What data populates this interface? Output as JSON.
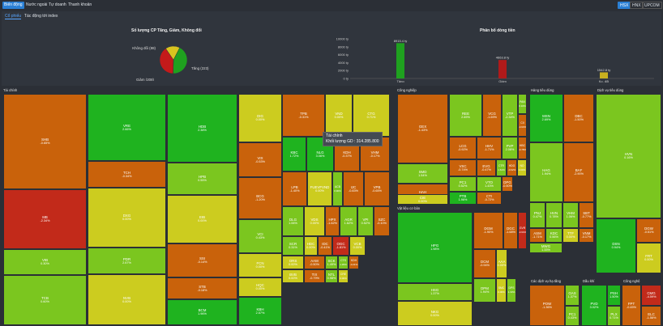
{
  "top_tabs": [
    {
      "label": "Biến động",
      "active": true
    },
    {
      "label": "Nước ngoài",
      "active": false
    },
    {
      "label": "Tự doanh",
      "active": false
    },
    {
      "label": "Thanh khoản",
      "active": false
    }
  ],
  "exchanges": [
    {
      "label": "HSX",
      "active": true
    },
    {
      "label": "HNX",
      "active": false
    },
    {
      "label": "UPCOM",
      "active": false
    }
  ],
  "sub_tabs": [
    {
      "label": "Cổ phiếu",
      "active": true
    },
    {
      "label": "Tác động tới index",
      "active": false
    }
  ],
  "colors": {
    "up": "#7bc61f",
    "strong_up": "#1fb31f",
    "flat": "#cccc1f",
    "down": "#c9620b",
    "strong_down": "#c22a1a"
  },
  "chart_data": [
    {
      "type": "pie",
      "title": "Số lượng CP Tăng, Giảm, Không đổi",
      "categories": [
        "Tăng",
        "Giảm",
        "Không đổi"
      ],
      "values": [
        223,
        208,
        88
      ],
      "labels": [
        "Tăng (223)",
        "Giảm (208)",
        "Không đổi (88)"
      ],
      "colors": [
        "#1fa11f",
        "#c41a1a",
        "#d9c41f"
      ]
    },
    {
      "type": "bar",
      "title": "Phân bổ dòng tiền",
      "categories": [
        "Tăng",
        "Giảm",
        "Ko. đổi"
      ],
      "values": [
        8915.4,
        4663.8,
        1542.8
      ],
      "value_labels": [
        "8915.4 tỷ",
        "4663.8 tỷ",
        "1542.8 tỷ"
      ],
      "yticks": [
        "10000 tỷ",
        "8000 tỷ",
        "6000 tỷ",
        "4000 tỷ",
        "2000 tỷ",
        "0 tỷ"
      ],
      "ylim": [
        0,
        10000
      ],
      "colors": [
        "#1fa11f",
        "#b01a1a",
        "#c8b01f"
      ]
    }
  ],
  "tooltip": {
    "line1": "Tài chính",
    "line2": "Khối lượng GD : 314.285.800"
  },
  "treemap": [
    {
      "name": "Tài chính",
      "tiles": [
        {
          "s": "SHB",
          "p": "-0.65%",
          "c": "down"
        },
        {
          "s": "MB",
          "p": "-2.34%",
          "c": "strong_down"
        },
        {
          "s": "VIB",
          "p": "0.30%",
          "c": "up"
        },
        {
          "s": "TCB",
          "p": "0.60%",
          "c": "up"
        },
        {
          "s": "VRE",
          "p": "2.66%",
          "c": "strong_up"
        },
        {
          "s": "TCH",
          "p": "-0.34%",
          "c": "down"
        },
        {
          "s": "DXG",
          "p": "0.00%",
          "c": "flat"
        },
        {
          "s": "PDR",
          "p": "2.67%",
          "c": "up"
        },
        {
          "s": "NVB",
          "p": "0.00%",
          "c": "flat"
        },
        {
          "s": "HDB",
          "p": "2.38%",
          "c": "strong_up"
        },
        {
          "s": "HPB",
          "p": "0.55%",
          "c": "up"
        },
        {
          "s": "EIB",
          "p": "0.00%",
          "c": "flat"
        },
        {
          "s": "SSI",
          "p": "-0.14%",
          "c": "down"
        },
        {
          "s": "STB",
          "p": "-0.18%",
          "c": "down"
        },
        {
          "s": "BCM",
          "p": "1.96%",
          "c": "strong_up"
        },
        {
          "s": "DIG",
          "p": "0.00%",
          "c": "flat"
        },
        {
          "s": "TPB",
          "p": "-0.31%",
          "c": "down"
        },
        {
          "s": "VND",
          "p": "0.00%",
          "c": "flat"
        },
        {
          "s": "CTG",
          "p": "0.71%",
          "c": "flat"
        },
        {
          "s": "VIX",
          "p": "-0.53%",
          "c": "down"
        },
        {
          "s": "KBC",
          "p": "1.72%",
          "c": "strong_up"
        },
        {
          "s": "NLG",
          "p": "3.06%",
          "c": "strong_up"
        },
        {
          "s": "KDH",
          "p": "-0.37%",
          "c": "down"
        },
        {
          "s": "VHM",
          "p": "-0.17%",
          "c": "down"
        },
        {
          "s": "BCG",
          "p": "-1.20%",
          "c": "down"
        },
        {
          "s": "LPB",
          "p": "-1.40%",
          "c": "down"
        },
        {
          "s": "FUEVFVND",
          "p": "0.00%",
          "c": "flat"
        },
        {
          "s": "ACB",
          "p": "0.90%",
          "c": "up"
        },
        {
          "s": "IJC",
          "p": "-0.83%",
          "c": "down"
        },
        {
          "s": "VPB",
          "p": "-0.65%",
          "c": "down"
        },
        {
          "s": "VCI",
          "p": "0.43%",
          "c": "up"
        },
        {
          "s": "DLG",
          "p": "1.06%",
          "c": "up"
        },
        {
          "s": "VDS",
          "p": "0.00%",
          "c": "flat"
        },
        {
          "s": "HPX",
          "p": "-1.62%",
          "c": "down"
        },
        {
          "s": "AGR",
          "p": "1.62%",
          "c": "up"
        },
        {
          "s": "VPI",
          "p": "0.52%",
          "c": "up"
        },
        {
          "s": "SZC",
          "p": "-0.10%",
          "c": "down"
        },
        {
          "s": "FCN",
          "p": "0.00%",
          "c": "flat"
        },
        {
          "s": "SCR",
          "p": "0.31%",
          "c": "up"
        },
        {
          "s": "HDC",
          "p": "0.00%",
          "c": "flat"
        },
        {
          "s": "IDC",
          "p": "-0.41%",
          "c": "down"
        },
        {
          "s": "OGC",
          "p": "-1.81%",
          "c": "strong_down"
        },
        {
          "s": "VCB",
          "p": "0.00%",
          "c": "flat"
        },
        {
          "s": "HQC",
          "p": "0.00%",
          "c": "flat"
        },
        {
          "s": "ORS",
          "p": "0.00%",
          "c": "flat"
        },
        {
          "s": "AAM",
          "p": "-0.50%",
          "c": "down"
        },
        {
          "s": "SCK",
          "p": "1.49%",
          "c": "up"
        },
        {
          "s": "CTS",
          "p": "1.35%",
          "c": "up"
        },
        {
          "s": "KDH",
          "p": "-0.21%",
          "c": "down"
        },
        {
          "s": "KBH",
          "p": "2.57%",
          "c": "strong_up"
        },
        {
          "s": "BVB",
          "p": "0.00%",
          "c": "flat"
        },
        {
          "s": "TIX",
          "p": "-0.79%",
          "c": "down"
        },
        {
          "s": "NTL",
          "p": "0.98%",
          "c": "up"
        },
        {
          "s": "CRE",
          "p": "0.00%",
          "c": "flat"
        }
      ]
    },
    {
      "name": "Công nghiệp",
      "tiles": [
        {
          "s": "GEX",
          "p": "-1.43%",
          "c": "down"
        },
        {
          "s": "REE",
          "p": "2.69%",
          "c": "up"
        },
        {
          "s": "VCG",
          "p": "-1.69%",
          "c": "down"
        },
        {
          "s": "VTP",
          "p": "-2.34%",
          "c": "up"
        },
        {
          "s": "PAN",
          "p": "0.16%",
          "c": "up"
        },
        {
          "s": "SMD",
          "p": "1.54%",
          "c": "up"
        },
        {
          "s": "LCG",
          "p": "-0.92%",
          "c": "down"
        },
        {
          "s": "HHV",
          "p": "-1.71%",
          "c": "down"
        },
        {
          "s": "PVP",
          "p": "2.08%",
          "c": "up"
        },
        {
          "s": "CII",
          "p": "-0.63%",
          "c": "down"
        },
        {
          "s": "HBC",
          "p": "-0.78%",
          "c": "down"
        },
        {
          "s": "HAH",
          "p": "-0.75%",
          "c": "down"
        },
        {
          "s": "VSC",
          "p": "-0.74%",
          "c": "down"
        },
        {
          "s": "EVG",
          "p": "-0.47%",
          "c": "down"
        },
        {
          "s": "CTR",
          "p": "1.61%",
          "c": "up"
        },
        {
          "s": "HDG",
          "p": "-0.62%",
          "c": "down"
        },
        {
          "s": "NO",
          "p": "0.00%",
          "c": "flat"
        },
        {
          "s": "CIE",
          "p": "0.00%",
          "c": "flat"
        },
        {
          "s": "PC1",
          "p": "0.52%",
          "c": "up"
        },
        {
          "s": "VTO",
          "p": "1.43%",
          "c": "up"
        },
        {
          "s": "DPG",
          "p": "-0.50%",
          "c": "down"
        },
        {
          "s": "PTB",
          "p": "1.96%",
          "c": "strong_up"
        },
        {
          "s": "CTI",
          "p": "-0.72%",
          "c": "down"
        }
      ]
    },
    {
      "name": "Hàng tiêu dùng",
      "tiles": [
        {
          "s": "MSN",
          "p": "2.69%",
          "c": "strong_up"
        },
        {
          "s": "DBC",
          "p": "-1.50%",
          "c": "down"
        },
        {
          "s": "HAG",
          "p": "1.94%",
          "c": "up"
        },
        {
          "s": "BAF",
          "p": "-2.90%",
          "c": "down"
        },
        {
          "s": "PNJ",
          "p": "0.47%",
          "c": "up"
        },
        {
          "s": "HVN",
          "p": "0.78%",
          "c": "up"
        },
        {
          "s": "VHM",
          "p": "1.06%",
          "c": "up"
        },
        {
          "s": "SBT",
          "p": "-0.77%",
          "c": "down"
        },
        {
          "s": "ASM",
          "p": "-1.71%",
          "c": "down"
        },
        {
          "s": "KDC",
          "p": "0.56%",
          "c": "up"
        },
        {
          "s": "TTF",
          "p": "0.00%",
          "c": "flat"
        },
        {
          "s": "VNM",
          "p": "-0.17%",
          "c": "down"
        },
        {
          "s": "MWG",
          "p": "1.33%",
          "c": "up"
        }
      ]
    },
    {
      "name": "Dịch vụ tiêu dùng",
      "tiles": [
        {
          "s": "HVN",
          "p": "0.16%",
          "c": "up"
        },
        {
          "s": "DSN",
          "p": "0.94%",
          "c": "strong_up"
        },
        {
          "s": "DGW",
          "p": "-0.51%",
          "c": "down"
        },
        {
          "s": "FRT",
          "p": "0.00%",
          "c": "flat"
        }
      ]
    },
    {
      "name": "Vật liệu cơ bản",
      "tiles": [
        {
          "s": "HPG",
          "p": "1.98%",
          "c": "strong_up"
        },
        {
          "s": "HSG",
          "p": "1.37%",
          "c": "up"
        },
        {
          "s": "NKG",
          "p": "0.00%",
          "c": "flat"
        },
        {
          "s": "DGM",
          "p": "-1.90%",
          "c": "down"
        },
        {
          "s": "DGC",
          "p": "-1.68%",
          "c": "down"
        },
        {
          "s": "DCM",
          "p": "-0.94%",
          "c": "down"
        },
        {
          "s": "AAA",
          "p": "0.00%",
          "c": "flat"
        },
        {
          "s": "GVR",
          "p": "-3.64%",
          "c": "strong_down"
        },
        {
          "s": "DPM",
          "p": "1.94%",
          "c": "up"
        },
        {
          "s": "SMC",
          "p": "0.00%",
          "c": "flat"
        },
        {
          "s": "DPS",
          "p": "1.33%",
          "c": "up"
        }
      ]
    },
    {
      "name": "Các dịch vụ hạ tầng",
      "tiles": [
        {
          "s": "POW",
          "p": "-1.36%",
          "c": "down"
        },
        {
          "s": "GAS",
          "p": "1.37%",
          "c": "up"
        },
        {
          "s": "PC1",
          "p": "0.43%",
          "c": "up"
        }
      ]
    },
    {
      "name": "Dầu khí",
      "tiles": [
        {
          "s": "PVD",
          "p": "3.02%",
          "c": "strong_up"
        },
        {
          "s": "PSH",
          "p": "1.50%",
          "c": "strong_up"
        },
        {
          "s": "PLX",
          "p": "0.71%",
          "c": "up"
        }
      ]
    },
    {
      "name": "Công nghệ",
      "tiles": [
        {
          "s": "FPT",
          "p": "-0.45%",
          "c": "down"
        },
        {
          "s": "CMG",
          "p": "-4.59%",
          "c": "strong_down"
        },
        {
          "s": "ELC",
          "p": "-1.56%",
          "c": "down"
        }
      ]
    }
  ]
}
